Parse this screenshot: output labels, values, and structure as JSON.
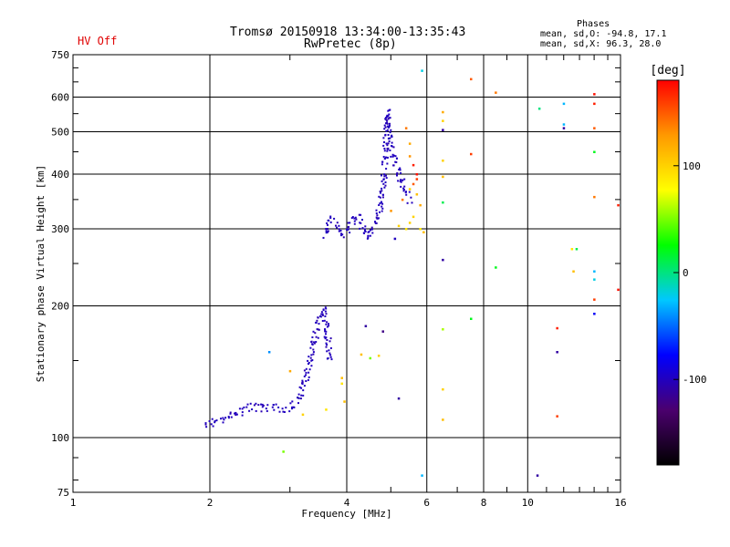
{
  "header": {
    "warning": "HV Off",
    "title": "Tromsø 20150918 13:34:00-13:35:43",
    "subtitle": "RwPretec (8p)",
    "stats_title": "Phases",
    "stats_line1": "mean, sd,O: -94.8, 17.1",
    "stats_line2": "mean, sd,X:  96.3, 28.0"
  },
  "colors": {
    "background": "#ffffff",
    "grid": "#000000",
    "main_trace": "#0026ff",
    "colorbar": [
      "#000000",
      "#4b006e",
      "#0000ff",
      "#00c8ff",
      "#00ff00",
      "#ffff00",
      "#ff9900",
      "#ff0000"
    ]
  },
  "chart_data": {
    "type": "scatter",
    "title": "Tromsø 20150918 13:34:00-13:35:43",
    "subtitle": "RwPretec (8p)",
    "xlabel": "Frequency [MHz]",
    "ylabel": "Stationary phase Virtual Height [km]",
    "x_scale": "log",
    "y_scale": "log",
    "xlim": [
      1,
      16
    ],
    "ylim": [
      75,
      750
    ],
    "grid": true,
    "x_ticks": [
      1,
      2,
      4,
      6,
      8,
      10,
      16
    ],
    "x_tick_labels": [
      "1",
      "2",
      "4",
      "6",
      "8",
      "10",
      "16"
    ],
    "y_ticks": [
      75,
      100,
      200,
      300,
      400,
      500,
      600,
      750
    ],
    "y_tick_labels": [
      "75",
      "100",
      "200",
      "300",
      "400",
      "500",
      "600",
      "750"
    ],
    "colorbar": {
      "label": "[deg]",
      "range": [
        -180,
        180
      ],
      "ticks": [
        100,
        0,
        -100
      ],
      "tick_labels": [
        "100",
        "0",
        "-100"
      ]
    },
    "o_mode_trace": {
      "phase_deg": -100,
      "segments": [
        {
          "x": [
            1.95,
            2.05,
            2.2,
            2.3,
            2.45,
            2.6,
            2.8,
            3.0,
            3.15,
            3.25,
            3.35,
            3.42,
            3.5,
            3.55,
            3.6,
            3.65
          ],
          "y": [
            108,
            109,
            112,
            115,
            118,
            117,
            117,
            118,
            125,
            140,
            160,
            178,
            190,
            197,
            180,
            150
          ]
        },
        {
          "x": [
            3.55,
            3.6,
            3.7,
            3.8,
            3.9,
            4.0,
            4.1,
            4.2,
            4.3,
            4.4,
            4.5,
            4.6,
            4.7,
            4.8,
            4.9
          ],
          "y": [
            290,
            305,
            315,
            305,
            295,
            300,
            310,
            320,
            305,
            290,
            295,
            310,
            330,
            380,
            560
          ]
        },
        {
          "x": [
            4.9,
            5.0,
            5.1,
            5.2,
            5.3,
            5.4,
            5.5
          ],
          "y": [
            560,
            460,
            430,
            400,
            380,
            360,
            345
          ]
        }
      ]
    },
    "points": [
      {
        "x": 5.85,
        "y": 690,
        "phase": -20
      },
      {
        "x": 6.5,
        "y": 555,
        "phase": 120
      },
      {
        "x": 6.5,
        "y": 530,
        "phase": 100
      },
      {
        "x": 6.5,
        "y": 505,
        "phase": -110
      },
      {
        "x": 7.5,
        "y": 660,
        "phase": 150
      },
      {
        "x": 8.5,
        "y": 615,
        "phase": 140
      },
      {
        "x": 7.5,
        "y": 445,
        "phase": 160
      },
      {
        "x": 6.5,
        "y": 430,
        "phase": 100
      },
      {
        "x": 6.5,
        "y": 395,
        "phase": 110
      },
      {
        "x": 6.5,
        "y": 345,
        "phase": 10
      },
      {
        "x": 6.5,
        "y": 255,
        "phase": -110
      },
      {
        "x": 8.5,
        "y": 245,
        "phase": 20
      },
      {
        "x": 5.4,
        "y": 510,
        "phase": 140
      },
      {
        "x": 5.5,
        "y": 470,
        "phase": 120
      },
      {
        "x": 5.5,
        "y": 440,
        "phase": 130
      },
      {
        "x": 5.6,
        "y": 420,
        "phase": 170
      },
      {
        "x": 5.7,
        "y": 400,
        "phase": 175
      },
      {
        "x": 5.6,
        "y": 380,
        "phase": 150
      },
      {
        "x": 5.7,
        "y": 360,
        "phase": 110
      },
      {
        "x": 5.8,
        "y": 340,
        "phase": 120
      },
      {
        "x": 5.6,
        "y": 320,
        "phase": 100
      },
      {
        "x": 5.5,
        "y": 310,
        "phase": 100
      },
      {
        "x": 5.4,
        "y": 300,
        "phase": 90
      },
      {
        "x": 5.2,
        "y": 305,
        "phase": 100
      },
      {
        "x": 5.0,
        "y": 330,
        "phase": 130
      },
      {
        "x": 5.3,
        "y": 350,
        "phase": 140
      },
      {
        "x": 5.5,
        "y": 370,
        "phase": 100
      },
      {
        "x": 5.7,
        "y": 390,
        "phase": 160
      },
      {
        "x": 5.8,
        "y": 300,
        "phase": 90
      },
      {
        "x": 5.9,
        "y": 295,
        "phase": 110
      },
      {
        "x": 5.1,
        "y": 285,
        "phase": -100
      },
      {
        "x": 4.4,
        "y": 180,
        "phase": -110
      },
      {
        "x": 4.8,
        "y": 175,
        "phase": -120
      },
      {
        "x": 4.3,
        "y": 155,
        "phase": 110
      },
      {
        "x": 4.5,
        "y": 152,
        "phase": 50
      },
      {
        "x": 4.7,
        "y": 154,
        "phase": 100
      },
      {
        "x": 3.9,
        "y": 137,
        "phase": 110
      },
      {
        "x": 3.9,
        "y": 133,
        "phase": 90
      },
      {
        "x": 3.95,
        "y": 121,
        "phase": 110
      },
      {
        "x": 3.6,
        "y": 116,
        "phase": 90
      },
      {
        "x": 3.2,
        "y": 113,
        "phase": 100
      },
      {
        "x": 3.0,
        "y": 142,
        "phase": 120
      },
      {
        "x": 2.7,
        "y": 157,
        "phase": -40
      },
      {
        "x": 2.9,
        "y": 93,
        "phase": 50
      },
      {
        "x": 5.2,
        "y": 123,
        "phase": -110
      },
      {
        "x": 6.5,
        "y": 177,
        "phase": 60
      },
      {
        "x": 7.5,
        "y": 187,
        "phase": 20
      },
      {
        "x": 6.5,
        "y": 129,
        "phase": 100
      },
      {
        "x": 6.5,
        "y": 110,
        "phase": 110
      },
      {
        "x": 5.85,
        "y": 82,
        "phase": -30
      },
      {
        "x": 10.5,
        "y": 82,
        "phase": -110
      },
      {
        "x": 10.6,
        "y": 565,
        "phase": 0
      },
      {
        "x": 12.0,
        "y": 580,
        "phase": -30
      },
      {
        "x": 14.0,
        "y": 610,
        "phase": 175
      },
      {
        "x": 14.0,
        "y": 580,
        "phase": 170
      },
      {
        "x": 12.0,
        "y": 520,
        "phase": -30
      },
      {
        "x": 12.0,
        "y": 510,
        "phase": -110
      },
      {
        "x": 14.0,
        "y": 510,
        "phase": 150
      },
      {
        "x": 14.0,
        "y": 450,
        "phase": 20
      },
      {
        "x": 14.0,
        "y": 355,
        "phase": 140
      },
      {
        "x": 15.8,
        "y": 340,
        "phase": 170
      },
      {
        "x": 12.5,
        "y": 270,
        "phase": 90
      },
      {
        "x": 12.8,
        "y": 270,
        "phase": 10
      },
      {
        "x": 12.6,
        "y": 240,
        "phase": 110
      },
      {
        "x": 14.0,
        "y": 240,
        "phase": -30
      },
      {
        "x": 14.0,
        "y": 230,
        "phase": -20
      },
      {
        "x": 15.8,
        "y": 218,
        "phase": 175
      },
      {
        "x": 14.0,
        "y": 207,
        "phase": 160
      },
      {
        "x": 14.0,
        "y": 192,
        "phase": -80
      },
      {
        "x": 11.6,
        "y": 178,
        "phase": 170
      },
      {
        "x": 11.6,
        "y": 157,
        "phase": -110
      },
      {
        "x": 11.6,
        "y": 112,
        "phase": 160
      }
    ]
  }
}
